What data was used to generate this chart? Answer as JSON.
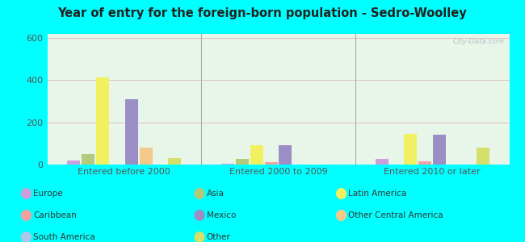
{
  "title": "Year of entry for the foreign-born population - Sedro-Woolley",
  "groups": [
    "Entered before 2000",
    "Entered 2000 to 2009",
    "Entered 2010 or later"
  ],
  "categories": [
    "Europe",
    "Asia",
    "Latin America",
    "Caribbean",
    "Mexico",
    "Other Central America",
    "South America",
    "Other"
  ],
  "colors": [
    "#c9a0dc",
    "#b5c97a",
    "#f0f060",
    "#f4a0a0",
    "#9b8ec4",
    "#f5c98a",
    "#aec6e8",
    "#d4e06a"
  ],
  "values": {
    "Entered before 2000": [
      20,
      50,
      415,
      0,
      310,
      80,
      0,
      30
    ],
    "Entered 2000 to 2009": [
      5,
      25,
      90,
      10,
      90,
      0,
      0,
      0
    ],
    "Entered 2010 or later": [
      25,
      0,
      145,
      15,
      140,
      0,
      0,
      80
    ]
  },
  "ylim": [
    0,
    620
  ],
  "yticks": [
    0,
    200,
    400,
    600
  ],
  "outer_bg": "#00ffff",
  "plot_bg": "#e8f5e9",
  "watermark": "City-Data.com",
  "legend_items": [
    {
      "label": "Europe",
      "color": "#c9a0dc"
    },
    {
      "label": "Asia",
      "color": "#b5c97a"
    },
    {
      "label": "Latin America",
      "color": "#f0f060"
    },
    {
      "label": "Caribbean",
      "color": "#f4a0a0"
    },
    {
      "label": "Mexico",
      "color": "#9b8ec4"
    },
    {
      "label": "Other Central America",
      "color": "#f5c98a"
    },
    {
      "label": "South America",
      "color": "#aec6e8"
    },
    {
      "label": "Other",
      "color": "#d4e06a"
    }
  ]
}
